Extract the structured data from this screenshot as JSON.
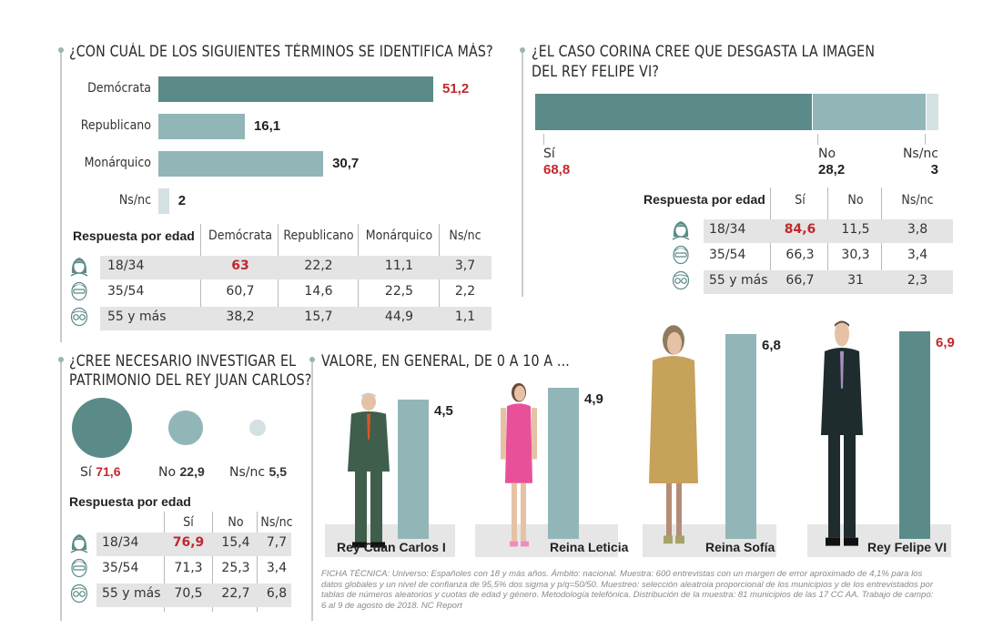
{
  "colors": {
    "dark": "#5b8b88",
    "light": "#92b6b8",
    "pale": "#d4e1e3",
    "highlight": "#c0282d",
    "row_bg": "#e4e4e4"
  },
  "chart_data": [
    {
      "id": "identifica",
      "type": "bar",
      "orientation": "horizontal",
      "title": "¿CON CUÁL DE LOS SIGUIENTES TÉRMINOS SE IDENTIFICA MÁS?",
      "categories": [
        "Demócrata",
        "Republicano",
        "Monárquico",
        "Ns/nc"
      ],
      "values": [
        51.2,
        16.1,
        30.7,
        2
      ],
      "value_labels": [
        "51,2",
        "16,1",
        "30,7",
        "2"
      ],
      "highlight_index": 0,
      "xlim": [
        0,
        51.2
      ]
    },
    {
      "id": "corina",
      "type": "bar",
      "orientation": "stacked-horizontal",
      "title_lines": [
        "¿EL CASO CORINA CREE QUE DESGASTA LA IMAGEN",
        "DEL REY FELIPE VI?"
      ],
      "categories": [
        "Sí",
        "No",
        "Ns/nc"
      ],
      "values": [
        68.8,
        28.2,
        3
      ],
      "value_labels": [
        "68,8",
        "28,2",
        "3"
      ],
      "highlight_index": 0
    },
    {
      "id": "patrimonio",
      "type": "scatter",
      "style": "bubble",
      "title_lines": [
        "¿CREE NECESARIO INVESTIGAR EL",
        "PATRIMONIO DEL REY JUAN CARLOS?"
      ],
      "categories": [
        "Sí",
        "No",
        "Ns/nc"
      ],
      "values": [
        71.6,
        22.9,
        5.5
      ],
      "value_labels": [
        "71,6",
        "22,9",
        "5,5"
      ],
      "highlight_index": 0
    },
    {
      "id": "valore",
      "type": "bar",
      "orientation": "vertical",
      "title": "VALORE, EN GENERAL, DE 0 A 10 A ...",
      "categories": [
        "Rey Cuan Carlos I",
        "Reina Leticia",
        "Reina Sofía",
        "Rey Felipe VI"
      ],
      "values": [
        4.5,
        4.9,
        6.8,
        6.9
      ],
      "value_labels": [
        "4,5",
        "4,9",
        "6,8",
        "6,9"
      ],
      "highlight_index": 3,
      "ylim": [
        0,
        10
      ]
    }
  ],
  "tables": {
    "identifica": {
      "title": "Respuesta por edad",
      "headers": [
        "Demócrata",
        "Republicano",
        "Monárquico",
        "Ns/nc"
      ],
      "rows": [
        {
          "age": "18/34",
          "icon": "young-person-icon",
          "values": [
            "63",
            "22,2",
            "11,1",
            "3,7"
          ],
          "highlight": 0
        },
        {
          "age": "35/54",
          "icon": "middle-age-person-icon",
          "values": [
            "60,7",
            "14,6",
            "22,5",
            "2,2"
          ]
        },
        {
          "age": "55 y más",
          "icon": "older-person-icon",
          "values": [
            "38,2",
            "15,7",
            "44,9",
            "1,1"
          ]
        }
      ]
    },
    "corina": {
      "title": "Respuesta por edad",
      "headers": [
        "Sí",
        "No",
        "Ns/nc"
      ],
      "rows": [
        {
          "age": "18/34",
          "icon": "young-person-icon",
          "values": [
            "84,6",
            "11,5",
            "3,8"
          ],
          "highlight": 0
        },
        {
          "age": "35/54",
          "icon": "middle-age-person-icon",
          "values": [
            "66,3",
            "30,3",
            "3,4"
          ]
        },
        {
          "age": "55 y más",
          "icon": "older-person-icon",
          "values": [
            "66,7",
            "31",
            "2,3"
          ]
        }
      ]
    },
    "patrimonio": {
      "title": "Respuesta por edad",
      "headers": [
        "Sí",
        "No",
        "Ns/nc"
      ],
      "rows": [
        {
          "age": "18/34",
          "icon": "young-person-icon",
          "values": [
            "76,9",
            "15,4",
            "7,7"
          ],
          "highlight": 0
        },
        {
          "age": "35/54",
          "icon": "middle-age-person-icon",
          "values": [
            "71,3",
            "25,3",
            "3,4"
          ]
        },
        {
          "age": "55 y más",
          "icon": "older-person-icon",
          "values": [
            "70,5",
            "22,7",
            "6,8"
          ]
        }
      ]
    }
  },
  "footer": "FICHA TÉCNICA: Universo: Españoles con 18 y más años. Ámbito: nacional. Muestra: 600 entrevistas con un margen de error aproximado de 4,1% para los datos globales y un nivel de confianza de 95,5% dos sigma y p/q=50/50. Muestreo: selección aleatroia proporcional de los municipios y de los entrevistados por tablas de números aleatorios y cuotas de edad y género. Metodología telefónica. Distribución de la muestra: 81 municipios de las 17 CC AA. Trabajo de campo: 6 al 9 de agosto de 2018. NC Report"
}
